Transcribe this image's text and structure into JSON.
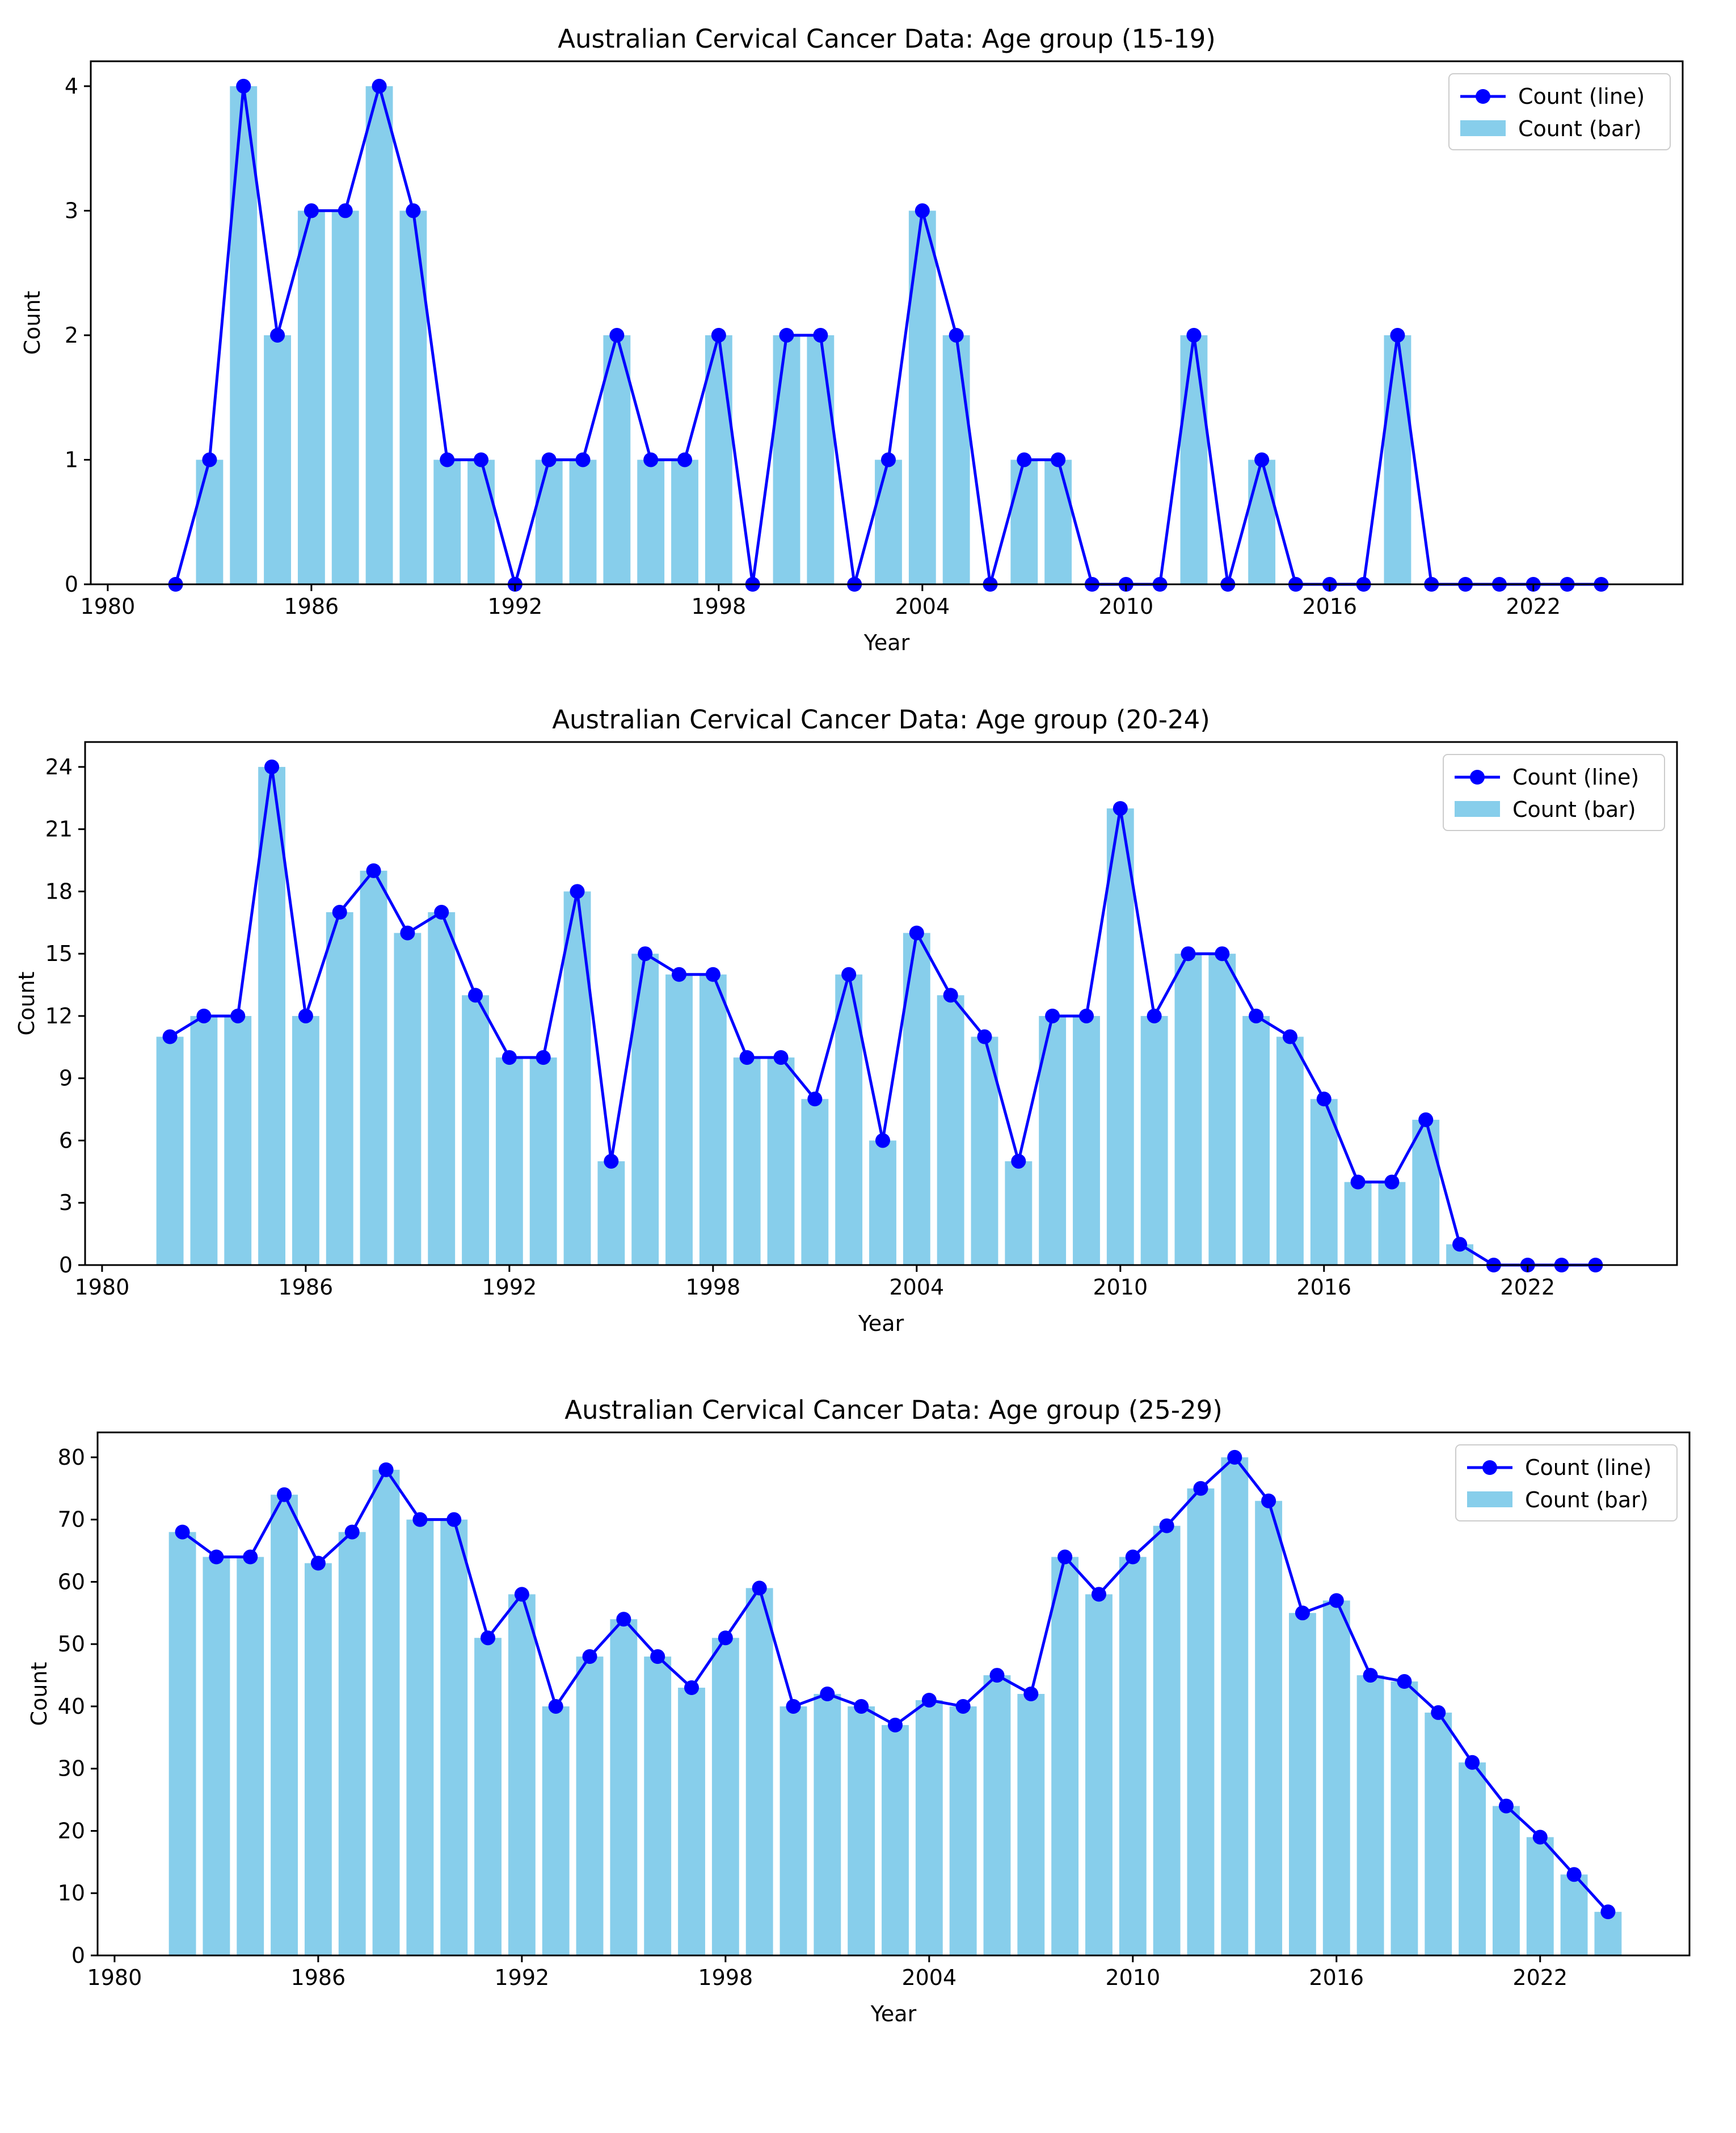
{
  "colors": {
    "bar": "#87ceeb",
    "line": "#0000ff",
    "axis": "#000000",
    "background": "#ffffff"
  },
  "legend": {
    "line_label": "Count (line)",
    "bar_label": "Count (bar)",
    "placement": "top-right"
  },
  "chart_data": [
    {
      "type": "bar+line",
      "title": "Australian Cervical Cancer Data: Age group (15-19)",
      "xlabel": "Year",
      "ylabel": "Count",
      "xlim": [
        1979.5,
        2026.4
      ],
      "ylim": [
        0,
        4.2
      ],
      "xticks": [
        1980,
        1986,
        1992,
        1998,
        2004,
        2010,
        2016,
        2022
      ],
      "yticks": [
        0,
        1,
        2,
        3,
        4
      ],
      "legend": "top-right",
      "series": [
        {
          "name": "Count (line)",
          "type": "line",
          "x": [
            1982,
            1983,
            1984,
            1985,
            1986,
            1987,
            1988,
            1989,
            1990,
            1991,
            1992,
            1993,
            1994,
            1995,
            1996,
            1997,
            1998,
            1999,
            2000,
            2001,
            2002,
            2003,
            2004,
            2005,
            2006,
            2007,
            2008,
            2009,
            2010,
            2011,
            2012,
            2013,
            2014,
            2015,
            2016,
            2017,
            2018,
            2019,
            2020,
            2021,
            2022,
            2023,
            2024
          ],
          "values": [
            0,
            1,
            4,
            2,
            3,
            3,
            4,
            3,
            1,
            1,
            0,
            1,
            1,
            2,
            1,
            1,
            2,
            0,
            2,
            2,
            0,
            1,
            3,
            2,
            0,
            1,
            1,
            0,
            0,
            0,
            2,
            0,
            1,
            0,
            0,
            0,
            2,
            0,
            0,
            0,
            0,
            0,
            0
          ]
        },
        {
          "name": "Count (bar)",
          "type": "bar",
          "x": [
            1982,
            1983,
            1984,
            1985,
            1986,
            1987,
            1988,
            1989,
            1990,
            1991,
            1992,
            1993,
            1994,
            1995,
            1996,
            1997,
            1998,
            1999,
            2000,
            2001,
            2002,
            2003,
            2004,
            2005,
            2006,
            2007,
            2008,
            2009,
            2010,
            2011,
            2012,
            2013,
            2014,
            2015,
            2016,
            2017,
            2018,
            2019,
            2020,
            2021,
            2022,
            2023,
            2024
          ],
          "values": [
            0,
            1,
            4,
            2,
            3,
            3,
            4,
            3,
            1,
            1,
            0,
            1,
            1,
            2,
            1,
            1,
            2,
            0,
            2,
            2,
            0,
            1,
            3,
            2,
            0,
            1,
            1,
            0,
            0,
            0,
            2,
            0,
            1,
            0,
            0,
            0,
            2,
            0,
            0,
            0,
            0,
            0,
            0
          ]
        }
      ]
    },
    {
      "type": "bar+line",
      "title": "Australian Cervical Cancer Data: Age group (20-24)",
      "xlabel": "Year",
      "ylabel": "Count",
      "xlim": [
        1979.5,
        2026.4
      ],
      "ylim": [
        0,
        25.2
      ],
      "xticks": [
        1980,
        1986,
        1992,
        1998,
        2004,
        2010,
        2016,
        2022
      ],
      "yticks": [
        0,
        3,
        6,
        9,
        12,
        15,
        18,
        21,
        24
      ],
      "legend": "top-right",
      "series": [
        {
          "name": "Count (line)",
          "type": "line",
          "x": [
            1982,
            1983,
            1984,
            1985,
            1986,
            1987,
            1988,
            1989,
            1990,
            1991,
            1992,
            1993,
            1994,
            1995,
            1996,
            1997,
            1998,
            1999,
            2000,
            2001,
            2002,
            2003,
            2004,
            2005,
            2006,
            2007,
            2008,
            2009,
            2010,
            2011,
            2012,
            2013,
            2014,
            2015,
            2016,
            2017,
            2018,
            2019,
            2020,
            2021,
            2022,
            2023,
            2024
          ],
          "values": [
            11,
            12,
            12,
            24,
            12,
            17,
            19,
            16,
            17,
            13,
            10,
            10,
            18,
            5,
            15,
            14,
            14,
            10,
            10,
            8,
            14,
            6,
            16,
            13,
            11,
            5,
            12,
            12,
            22,
            12,
            15,
            15,
            12,
            11,
            8,
            4,
            4,
            7,
            1,
            0,
            0,
            0,
            0
          ]
        },
        {
          "name": "Count (bar)",
          "type": "bar",
          "x": [
            1982,
            1983,
            1984,
            1985,
            1986,
            1987,
            1988,
            1989,
            1990,
            1991,
            1992,
            1993,
            1994,
            1995,
            1996,
            1997,
            1998,
            1999,
            2000,
            2001,
            2002,
            2003,
            2004,
            2005,
            2006,
            2007,
            2008,
            2009,
            2010,
            2011,
            2012,
            2013,
            2014,
            2015,
            2016,
            2017,
            2018,
            2019,
            2020,
            2021,
            2022,
            2023,
            2024
          ],
          "values": [
            11,
            12,
            12,
            24,
            12,
            17,
            19,
            16,
            17,
            13,
            10,
            10,
            18,
            5,
            15,
            14,
            14,
            10,
            10,
            8,
            14,
            6,
            16,
            13,
            11,
            5,
            12,
            12,
            22,
            12,
            15,
            15,
            12,
            11,
            8,
            4,
            4,
            7,
            1,
            0,
            0,
            0,
            0
          ]
        }
      ]
    },
    {
      "type": "bar+line",
      "title": "Australian Cervical Cancer Data: Age group (25-29)",
      "xlabel": "Year",
      "ylabel": "Count",
      "xlim": [
        1979.5,
        2026.4
      ],
      "ylim": [
        0,
        84
      ],
      "xticks": [
        1980,
        1986,
        1992,
        1998,
        2004,
        2010,
        2016,
        2022
      ],
      "yticks": [
        0,
        10,
        20,
        30,
        40,
        50,
        60,
        70,
        80
      ],
      "legend": "top-right",
      "series": [
        {
          "name": "Count (line)",
          "type": "line",
          "x": [
            1982,
            1983,
            1984,
            1985,
            1986,
            1987,
            1988,
            1989,
            1990,
            1991,
            1992,
            1993,
            1994,
            1995,
            1996,
            1997,
            1998,
            1999,
            2000,
            2001,
            2002,
            2003,
            2004,
            2005,
            2006,
            2007,
            2008,
            2009,
            2010,
            2011,
            2012,
            2013,
            2014,
            2015,
            2016,
            2017,
            2018,
            2019,
            2020,
            2021,
            2022,
            2023,
            2024
          ],
          "values": [
            68,
            64,
            64,
            74,
            63,
            68,
            78,
            70,
            70,
            51,
            58,
            40,
            48,
            54,
            48,
            43,
            51,
            59,
            40,
            42,
            40,
            37,
            41,
            40,
            45,
            42,
            64,
            58,
            64,
            69,
            75,
            80,
            73,
            55,
            57,
            45,
            44,
            39,
            31,
            24,
            19,
            13,
            7
          ]
        },
        {
          "name": "Count (bar)",
          "type": "bar",
          "x": [
            1982,
            1983,
            1984,
            1985,
            1986,
            1987,
            1988,
            1989,
            1990,
            1991,
            1992,
            1993,
            1994,
            1995,
            1996,
            1997,
            1998,
            1999,
            2000,
            2001,
            2002,
            2003,
            2004,
            2005,
            2006,
            2007,
            2008,
            2009,
            2010,
            2011,
            2012,
            2013,
            2014,
            2015,
            2016,
            2017,
            2018,
            2019,
            2020,
            2021,
            2022,
            2023,
            2024
          ],
          "values": [
            68,
            64,
            64,
            74,
            63,
            68,
            78,
            70,
            70,
            51,
            58,
            40,
            48,
            54,
            48,
            43,
            51,
            59,
            40,
            42,
            40,
            37,
            41,
            40,
            45,
            42,
            64,
            58,
            64,
            69,
            75,
            80,
            73,
            55,
            57,
            45,
            44,
            39,
            31,
            24,
            19,
            13,
            7
          ]
        }
      ]
    }
  ]
}
